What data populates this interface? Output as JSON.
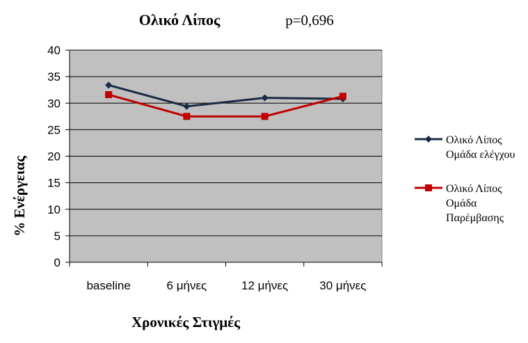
{
  "chart_data": {
    "type": "line",
    "title": "Ολικό Λίπος",
    "subtitle": "p=0,696",
    "xlabel": "Χρονικές Στιγμές",
    "ylabel": "% Ενέργειας",
    "categories": [
      "baseline",
      "6 μήνες",
      "12 μήνες",
      "30 μήνες"
    ],
    "ylim": [
      0,
      40
    ],
    "yticks": [
      "0",
      "5",
      "10",
      "15",
      "20",
      "25",
      "30",
      "35",
      "40"
    ],
    "grid": true,
    "legend_position": "right",
    "plot_background": "#c0c0c0",
    "series": [
      {
        "name_lines": [
          "Ολικό Λίπος",
          "Ομάδα ελέγχου"
        ],
        "values": [
          33.4,
          29.4,
          31.0,
          30.8
        ],
        "color": "#1a2a44",
        "marker": "diamond"
      },
      {
        "name_lines": [
          "Ολικό Λίπος",
          "Ομάδα",
          "Παρέμβασης"
        ],
        "values": [
          31.6,
          27.5,
          27.5,
          31.3
        ],
        "color": "#c00000",
        "marker": "square"
      }
    ]
  }
}
